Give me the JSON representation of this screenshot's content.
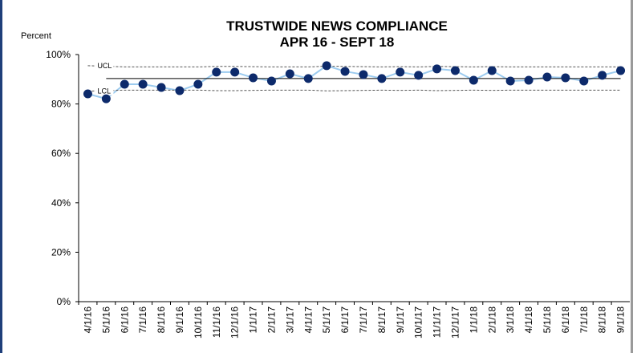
{
  "chart_data": {
    "type": "line",
    "title": "TRUSTWIDE NEWS COMPLIANCE",
    "subtitle": "APR 16 - SEPT 18",
    "y_label": "Percent",
    "categories": [
      "4/1/16",
      "5/1/16",
      "6/1/16",
      "7/1/16",
      "8/1/16",
      "9/1/16",
      "10/1/16",
      "11/1/16",
      "12/1/16",
      "1/1/17",
      "2/1/17",
      "3/1/17",
      "4/1/17",
      "5/1/17",
      "6/1/17",
      "7/1/17",
      "8/1/17",
      "9/1/17",
      "10/1/17",
      "11/1/17",
      "12/1/17",
      "1/1/18",
      "2/1/18",
      "3/1/18",
      "4/1/18",
      "5/1/18",
      "6/1/18",
      "7/1/18",
      "8/1/18",
      "9/1/18"
    ],
    "series": [
      {
        "color": "#0d2a6b",
        "line_color": "#9ccbef",
        "values": [
          84.1,
          82.1,
          88,
          88,
          86.7,
          85.4,
          88,
          92.9,
          92.9,
          90.6,
          89.3,
          92.2,
          90.3,
          95.5,
          93.2,
          91.9,
          90.3,
          92.9,
          91.6,
          94.2,
          93.5,
          89.6,
          93.5,
          89.3,
          89.6,
          90.9,
          90.6,
          89.3,
          91.6,
          93.5
        ]
      },
      {
        "color": "#000000",
        "values": [
          null,
          90.3,
          90.3,
          90.3,
          90.3,
          90.3,
          90.3,
          90.3,
          90.3,
          90.3,
          90.3,
          90.3,
          90.3,
          90.3,
          90.3,
          90.3,
          90.3,
          90.3,
          90.3,
          90.3,
          90.3,
          90.3,
          90.3,
          90.3,
          90.3,
          90.3,
          90.3,
          90.3,
          90.3,
          90.3
        ]
      },
      {
        "name": "UCL",
        "color": "#555555",
        "dashed": true,
        "values": [
          95.5,
          95.3,
          95,
          95,
          95,
          95,
          95,
          95.2,
          95.2,
          95.1,
          95,
          95,
          95,
          95.3,
          95.2,
          95.1,
          95,
          95.1,
          95,
          95.2,
          95.1,
          95,
          95.1,
          95,
          95,
          95,
          95,
          95,
          95,
          95
        ]
      },
      {
        "name": "LCL",
        "color": "#555555",
        "dashed": true,
        "values": [
          85.2,
          85.4,
          85.6,
          85.6,
          85.6,
          85.6,
          85.6,
          85.4,
          85.4,
          85.5,
          85.6,
          85.6,
          85.6,
          85.3,
          85.4,
          85.5,
          85.6,
          85.5,
          85.6,
          85.4,
          85.5,
          85.6,
          85.5,
          85.6,
          85.6,
          85.6,
          85.6,
          85.6,
          85.6,
          85.6
        ]
      }
    ],
    "ylim": [
      0,
      100
    ],
    "yticks": [
      {
        "value": 0,
        "label": "0%"
      },
      {
        "value": 20,
        "label": "20%"
      },
      {
        "value": 40,
        "label": "40%"
      },
      {
        "value": 60,
        "label": "60%"
      },
      {
        "value": 80,
        "label": "80%"
      },
      {
        "value": 100,
        "label": "100%"
      }
    ]
  }
}
